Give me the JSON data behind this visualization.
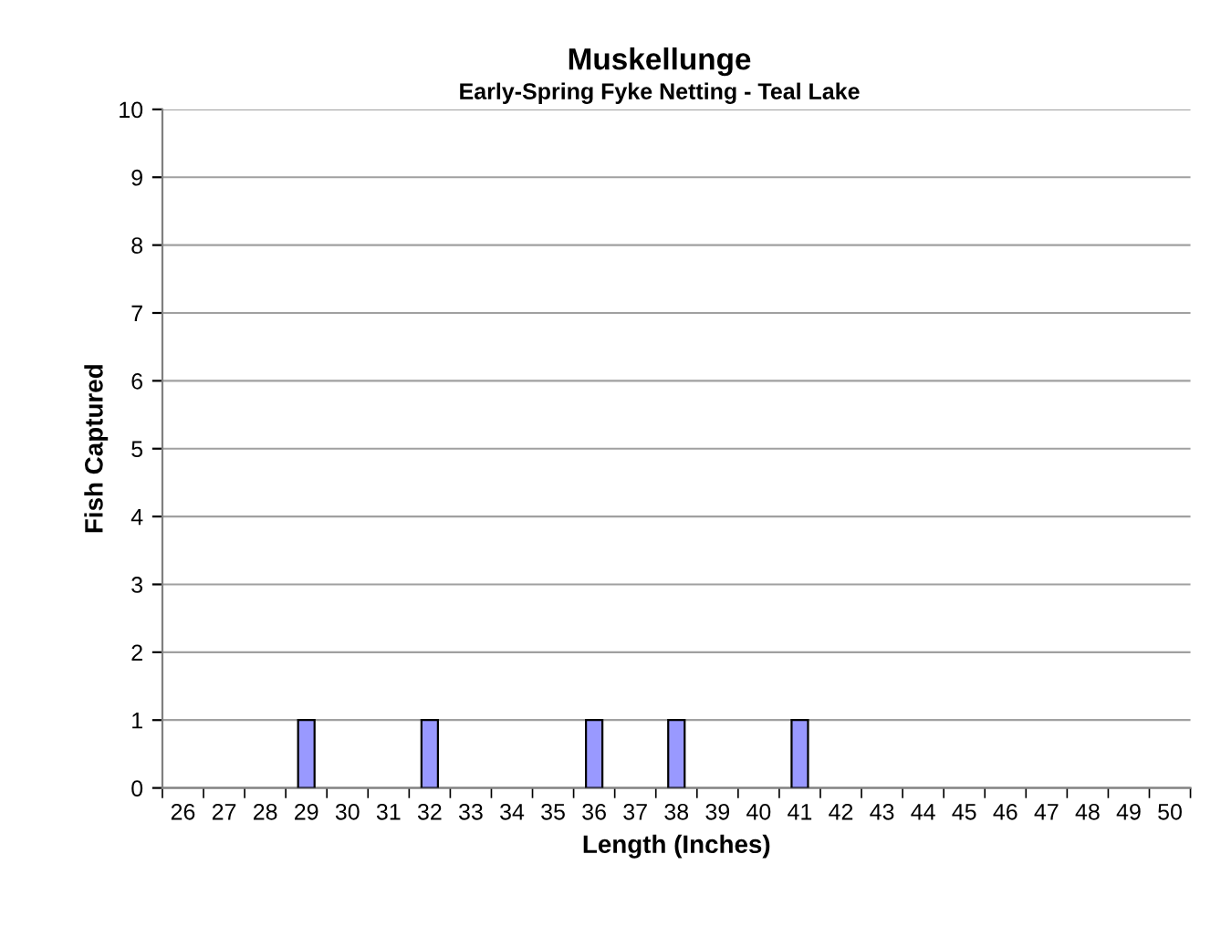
{
  "chart_data": {
    "type": "bar",
    "title": "Muskellunge",
    "subtitle": "Early-Spring Fyke Netting - Teal Lake",
    "xlabel": "Length (Inches)",
    "ylabel": "Fish Captured",
    "categories": [
      "26",
      "27",
      "28",
      "29",
      "30",
      "31",
      "32",
      "33",
      "34",
      "35",
      "36",
      "37",
      "38",
      "39",
      "40",
      "41",
      "42",
      "43",
      "44",
      "45",
      "46",
      "47",
      "48",
      "49",
      "50"
    ],
    "values": [
      0,
      0,
      0,
      1,
      0,
      0,
      1,
      0,
      0,
      0,
      1,
      0,
      1,
      0,
      0,
      1,
      0,
      0,
      0,
      0,
      0,
      0,
      0,
      0,
      0
    ],
    "color": "#9999ff",
    "ylim": [
      0,
      10
    ],
    "yticks": [
      0,
      1,
      2,
      3,
      4,
      5,
      6,
      7,
      8,
      9,
      10
    ],
    "grid": "y",
    "legend": false
  }
}
